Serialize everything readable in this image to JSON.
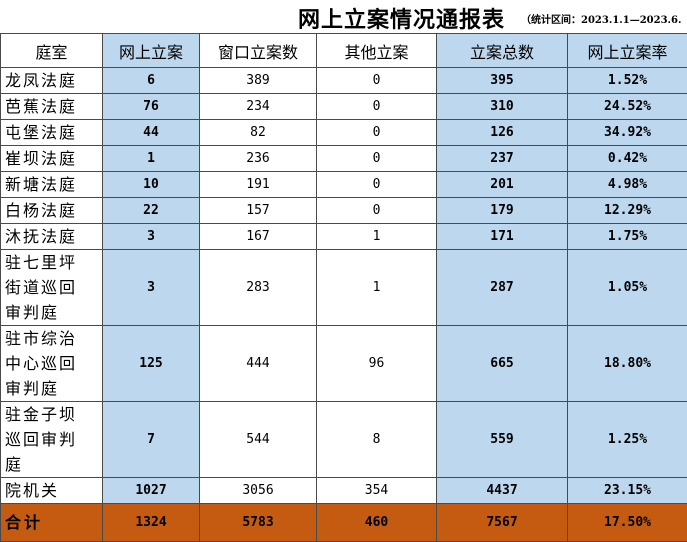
{
  "title": "网上立案情况通报表",
  "title_note": "（统计区间：2023.1.1—2023.6.",
  "headers": [
    "庭室",
    "网上立案",
    "窗口立案数",
    "其他立案",
    "立案总数",
    "网上立案率"
  ],
  "rows": [
    {
      "name": "龙凤法庭",
      "online": "6",
      "window": "389",
      "other": "0",
      "total": "395",
      "rate": "1.52%"
    },
    {
      "name": "芭蕉法庭",
      "online": "76",
      "window": "234",
      "other": "0",
      "total": "310",
      "rate": "24.52%"
    },
    {
      "name": "屯堡法庭",
      "online": "44",
      "window": "82",
      "other": "0",
      "total": "126",
      "rate": "34.92%"
    },
    {
      "name": "崔坝法庭",
      "online": "1",
      "window": "236",
      "other": "0",
      "total": "237",
      "rate": "0.42%"
    },
    {
      "name": "新塘法庭",
      "online": "10",
      "window": "191",
      "other": "0",
      "total": "201",
      "rate": "4.98%"
    },
    {
      "name": "白杨法庭",
      "online": "22",
      "window": "157",
      "other": "0",
      "total": "179",
      "rate": "12.29%"
    },
    {
      "name": "沐抚法庭",
      "online": "3",
      "window": "167",
      "other": "1",
      "total": "171",
      "rate": "1.75%"
    },
    {
      "name_lines": [
        "驻七里坪",
        "街道巡回",
        "审判庭"
      ],
      "online": "3",
      "window": "283",
      "other": "1",
      "total": "287",
      "rate": "1.05%"
    },
    {
      "name_lines": [
        "驻市综治",
        "中心巡回",
        "审判庭"
      ],
      "online": "125",
      "window": "444",
      "other": "96",
      "total": "665",
      "rate": "18.80%"
    },
    {
      "name_lines": [
        "驻金子坝",
        "巡回审判",
        "庭"
      ],
      "online": "7",
      "window": "544",
      "other": "8",
      "total": "559",
      "rate": "1.25%"
    },
    {
      "name": "院机关",
      "online": "1027",
      "window": "3056",
      "other": "354",
      "total": "4437",
      "rate": "23.15%"
    }
  ],
  "total_row": {
    "name": "合计",
    "online": "1324",
    "window": "5783",
    "other": "460",
    "total": "7567",
    "rate": "17.50%"
  }
}
